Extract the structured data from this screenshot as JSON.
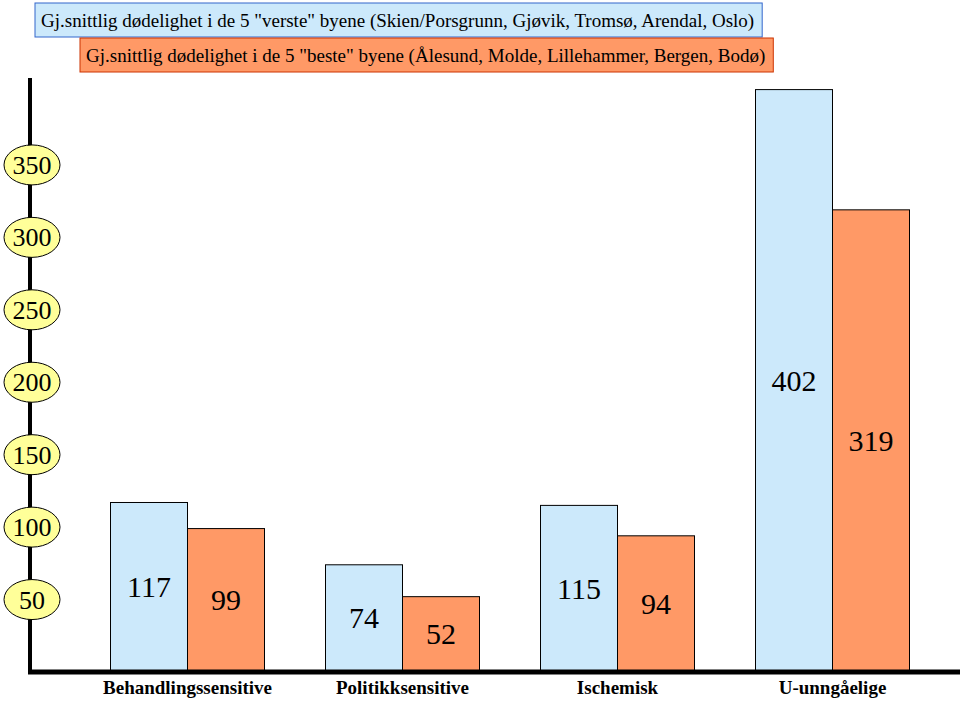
{
  "chart_data": {
    "type": "bar",
    "categories": [
      "Behandlingssensitive",
      "Politikksensitive",
      "Ischemisk",
      "U-unngåelige"
    ],
    "series": [
      {
        "name": "Gj.snittlig dødelighet i de 5 \"verste\" byene (Skien/Porsgrunn, Gjøvik, Tromsø, Arendal, Oslo)",
        "color": "#cce9fb",
        "values": [
          117,
          74,
          115,
          402
        ]
      },
      {
        "name": "Gj.snittlig dødelighet i de 5 \"beste\" byene (Ålesund, Molde, Lillehammer, Bergen, Bodø)",
        "color": "#ff9966",
        "values": [
          99,
          52,
          94,
          319
        ]
      }
    ],
    "ylim": [
      0,
      410
    ],
    "yticks": [
      50,
      100,
      150,
      200,
      250,
      300,
      350
    ],
    "grid": false,
    "legend": "top-left",
    "data_labels": true
  }
}
